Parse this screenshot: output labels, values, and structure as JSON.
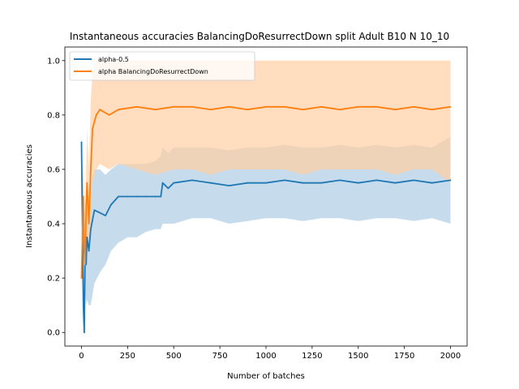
{
  "chart_data": {
    "type": "line",
    "title": "Instantaneous accuracies BalancingDoResurrectDown split Adult B10 N 10_10",
    "xlabel": "Number of batches",
    "ylabel": "Instantaneous accuracies",
    "xlim": [
      -90,
      2090
    ],
    "ylim": [
      -0.05,
      1.05
    ],
    "xticks": [
      0,
      250,
      500,
      750,
      1000,
      1250,
      1500,
      1750,
      2000
    ],
    "yticks": [
      0.0,
      0.2,
      0.4,
      0.6,
      0.8,
      1.0
    ],
    "xtick_labels": [
      "0",
      "250",
      "500",
      "750",
      "1000",
      "1250",
      "1500",
      "1750",
      "2000"
    ],
    "ytick_labels": [
      "0.0",
      "0.2",
      "0.4",
      "0.6",
      "0.8",
      "1.0"
    ],
    "grid": false,
    "legend_position": "upper-left",
    "series": [
      {
        "name": "alpha-0.5",
        "color": "#1f77b4",
        "band_color": "#aecde6",
        "x": [
          0,
          10,
          15,
          20,
          25,
          30,
          40,
          50,
          70,
          100,
          130,
          160,
          200,
          250,
          300,
          350,
          400,
          430,
          440,
          470,
          500,
          600,
          700,
          800,
          900,
          1000,
          1100,
          1200,
          1300,
          1400,
          1500,
          1600,
          1700,
          1800,
          1900,
          2000
        ],
        "values": [
          0.7,
          0.1,
          0.0,
          0.3,
          0.25,
          0.35,
          0.3,
          0.38,
          0.45,
          0.44,
          0.43,
          0.47,
          0.5,
          0.5,
          0.5,
          0.5,
          0.5,
          0.5,
          0.55,
          0.53,
          0.55,
          0.56,
          0.55,
          0.54,
          0.55,
          0.55,
          0.56,
          0.55,
          0.55,
          0.56,
          0.55,
          0.56,
          0.55,
          0.56,
          0.55,
          0.56
        ],
        "lower": [
          0.6,
          0.05,
          0.0,
          0.15,
          0.1,
          0.12,
          0.1,
          0.1,
          0.18,
          0.22,
          0.25,
          0.3,
          0.33,
          0.35,
          0.35,
          0.37,
          0.38,
          0.38,
          0.4,
          0.4,
          0.4,
          0.42,
          0.42,
          0.4,
          0.41,
          0.42,
          0.42,
          0.41,
          0.42,
          0.42,
          0.41,
          0.42,
          0.42,
          0.41,
          0.42,
          0.4
        ],
        "upper": [
          0.75,
          0.25,
          0.2,
          0.5,
          0.45,
          0.55,
          0.5,
          0.55,
          0.6,
          0.6,
          0.58,
          0.6,
          0.62,
          0.62,
          0.62,
          0.62,
          0.63,
          0.65,
          0.68,
          0.66,
          0.68,
          0.68,
          0.68,
          0.67,
          0.68,
          0.68,
          0.69,
          0.68,
          0.68,
          0.69,
          0.68,
          0.69,
          0.68,
          0.69,
          0.68,
          0.72
        ]
      },
      {
        "name": "alpha BalancingDoResurrectDown",
        "color": "#ff7f0e",
        "band_color": "#ffcfa3",
        "x": [
          0,
          10,
          15,
          20,
          25,
          30,
          40,
          50,
          60,
          80,
          100,
          150,
          200,
          300,
          400,
          500,
          600,
          700,
          800,
          900,
          1000,
          1100,
          1200,
          1300,
          1400,
          1500,
          1600,
          1700,
          1800,
          1900,
          2000
        ],
        "values": [
          0.2,
          0.5,
          0.3,
          0.25,
          0.45,
          0.55,
          0.4,
          0.6,
          0.75,
          0.8,
          0.82,
          0.8,
          0.82,
          0.83,
          0.82,
          0.83,
          0.83,
          0.82,
          0.83,
          0.82,
          0.83,
          0.83,
          0.82,
          0.83,
          0.82,
          0.83,
          0.83,
          0.82,
          0.83,
          0.82,
          0.83
        ],
        "lower": [
          0.15,
          0.3,
          0.2,
          0.18,
          0.3,
          0.35,
          0.3,
          0.4,
          0.55,
          0.6,
          0.62,
          0.6,
          0.62,
          0.6,
          0.58,
          0.6,
          0.6,
          0.58,
          0.6,
          0.6,
          0.6,
          0.6,
          0.58,
          0.6,
          0.6,
          0.6,
          0.6,
          0.58,
          0.6,
          0.6,
          0.55
        ],
        "upper": [
          0.3,
          0.65,
          0.5,
          0.4,
          0.6,
          0.75,
          0.6,
          0.85,
          0.95,
          1.0,
          1.0,
          1.0,
          1.0,
          1.0,
          1.0,
          1.0,
          1.0,
          1.0,
          1.0,
          1.0,
          1.0,
          1.0,
          1.0,
          1.0,
          1.0,
          1.0,
          1.0,
          1.0,
          1.0,
          1.0,
          1.0
        ]
      }
    ]
  }
}
